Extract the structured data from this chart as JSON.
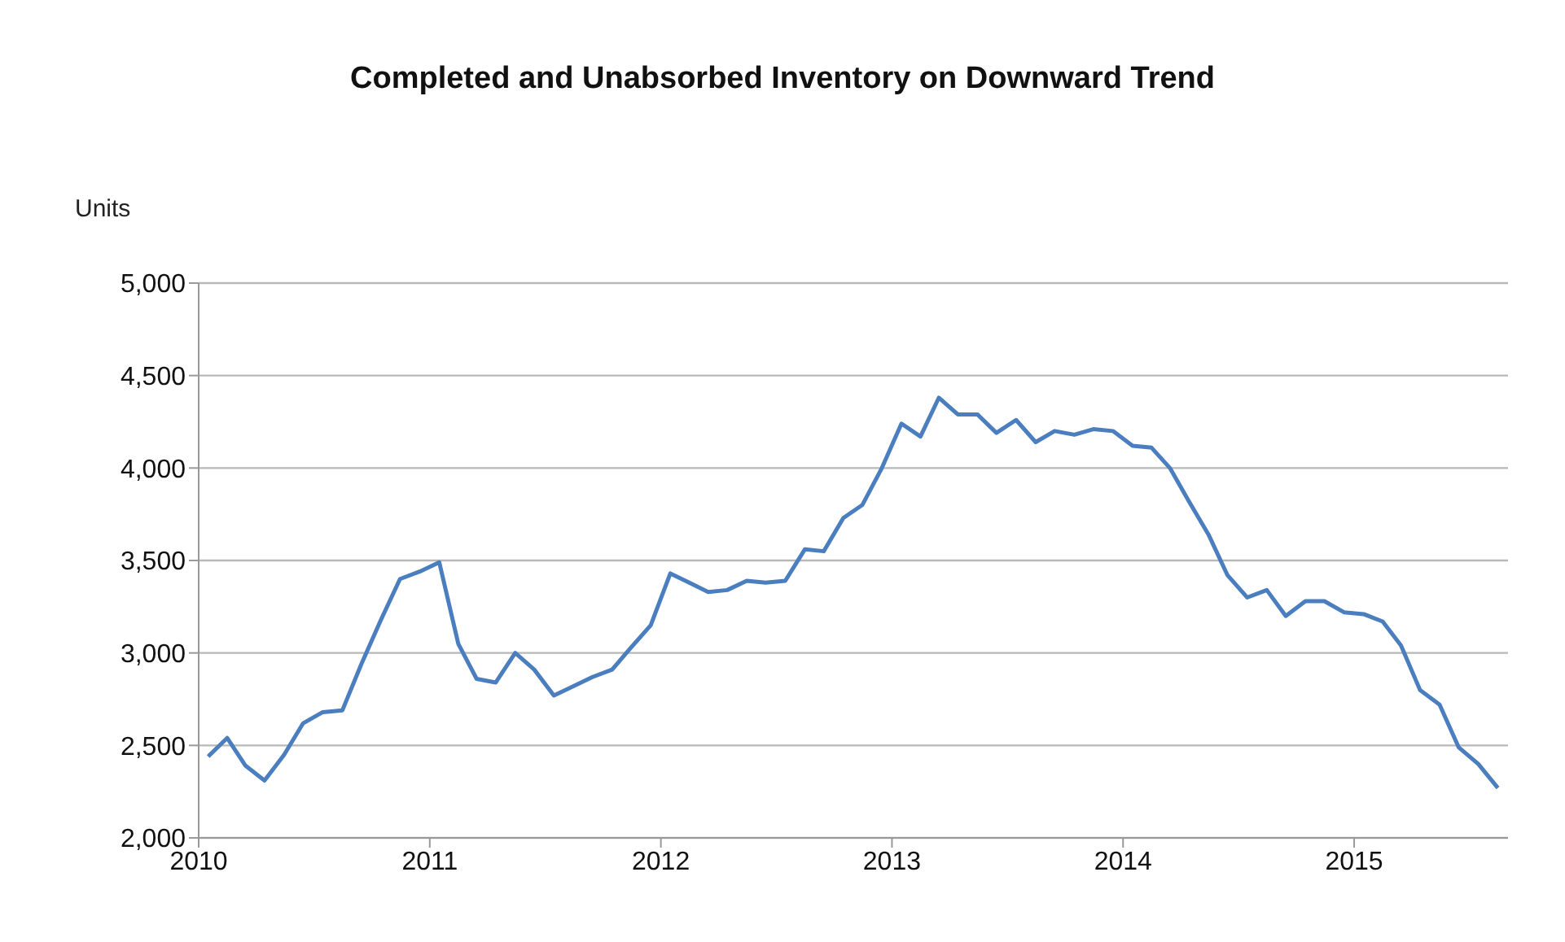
{
  "chart_data": {
    "type": "line",
    "title": "Completed and Unabsorbed Inventory on Downward Trend",
    "ylabel": "Units",
    "x": [
      "2010-01-16",
      "2010-02-15",
      "2010-03-16",
      "2010-04-15",
      "2010-05-16",
      "2010-06-15",
      "2010-07-16",
      "2010-08-16",
      "2010-09-15",
      "2010-10-16",
      "2010-11-15",
      "2010-12-16",
      "2011-01-16",
      "2011-02-15",
      "2011-03-16",
      "2011-04-15",
      "2011-05-16",
      "2011-06-15",
      "2011-07-16",
      "2011-08-16",
      "2011-09-15",
      "2011-10-16",
      "2011-11-15",
      "2011-12-16",
      "2012-01-16",
      "2012-02-15",
      "2012-03-16",
      "2012-04-15",
      "2012-05-16",
      "2012-06-15",
      "2012-07-16",
      "2012-08-16",
      "2012-09-15",
      "2012-10-16",
      "2012-11-15",
      "2012-12-16",
      "2013-01-16",
      "2013-02-15",
      "2013-03-16",
      "2013-04-15",
      "2013-05-16",
      "2013-06-15",
      "2013-07-16",
      "2013-08-16",
      "2013-09-15",
      "2013-10-16",
      "2013-11-15",
      "2013-12-16",
      "2014-01-16",
      "2014-02-15",
      "2014-03-16",
      "2014-04-15",
      "2014-05-16",
      "2014-06-15",
      "2014-07-16",
      "2014-08-16",
      "2014-09-15",
      "2014-10-16",
      "2014-11-15",
      "2014-12-16",
      "2015-01-16",
      "2015-02-15",
      "2015-03-16",
      "2015-04-15",
      "2015-05-16",
      "2015-06-15",
      "2015-07-16",
      "2015-08-16"
    ],
    "series": [
      {
        "color": "#4a7ebf",
        "values": [
          2440,
          2540,
          2390,
          2310,
          2450,
          2620,
          2680,
          2690,
          2940,
          3180,
          3400,
          3440,
          3490,
          3050,
          2860,
          2840,
          3000,
          2910,
          2770,
          2820,
          2870,
          2910,
          3030,
          3150,
          3430,
          3380,
          3330,
          3340,
          3390,
          3380,
          3390,
          3560,
          3550,
          3730,
          3800,
          4000,
          4240,
          4170,
          4380,
          4290,
          4290,
          4190,
          4260,
          4140,
          4200,
          4180,
          4210,
          4200,
          4120,
          4110,
          4000,
          3820,
          3640,
          3420,
          3300,
          3340,
          3200,
          3280,
          3280,
          3220,
          3210,
          3170,
          3040,
          2800,
          2720,
          2490,
          2400,
          2270
        ]
      }
    ],
    "xlim": [
      "2010",
      "2015-09"
    ],
    "xticks": [
      "2010",
      "2011",
      "2012",
      "2013",
      "2014",
      "2015"
    ],
    "ylim": [
      2000,
      5000
    ],
    "yticks": [
      {
        "value": 2000,
        "label": "2,000"
      },
      {
        "value": 2500,
        "label": "2,500"
      },
      {
        "value": 3000,
        "label": "3,000"
      },
      {
        "value": 3500,
        "label": "3,500"
      },
      {
        "value": 4000,
        "label": "4,000"
      },
      {
        "value": 4500,
        "label": "4,500"
      },
      {
        "value": 5000,
        "label": "5,000"
      }
    ],
    "grid": "y",
    "legend": false,
    "marker": "none",
    "line_style": "solid"
  }
}
